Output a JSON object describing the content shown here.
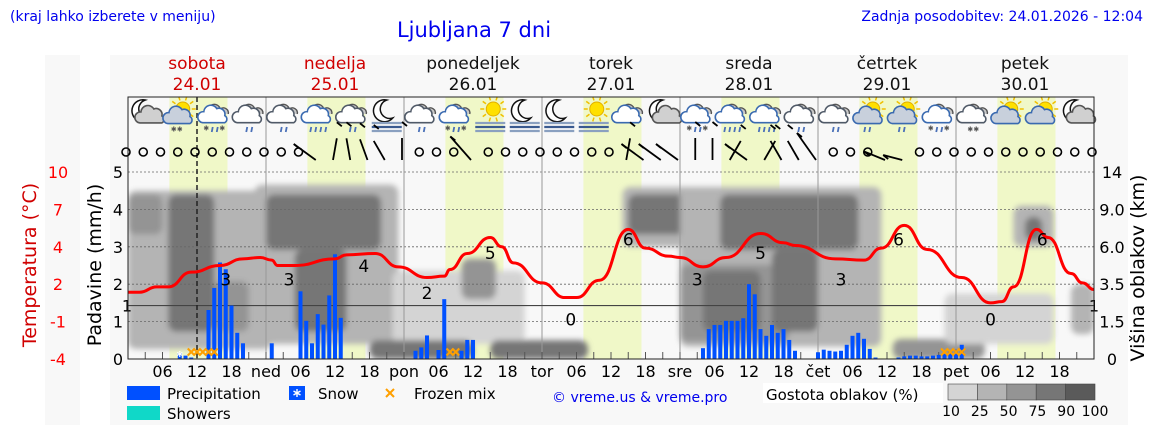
{
  "header": {
    "location_hint": "(kraj lahko izberete v meniju)",
    "title": "Ljubljana 7 dni",
    "last_update": "Zadnja posodobitev: 24.01.2026 - 12:04"
  },
  "days": [
    {
      "name": "sobota",
      "date": "24.01",
      "weekend": true
    },
    {
      "name": "nedelja",
      "date": "25.01",
      "weekend": true
    },
    {
      "name": "ponedeljek",
      "date": "26.01",
      "weekend": false
    },
    {
      "name": "torek",
      "date": "27.01",
      "weekend": false
    },
    {
      "name": "sreda",
      "date": "28.01",
      "weekend": false
    },
    {
      "name": "četrtek",
      "date": "29.01",
      "weekend": false
    },
    {
      "name": "petek",
      "date": "30.01",
      "weekend": false
    }
  ],
  "weather_icons": [
    "moon-cloud",
    "sun-cloud-snow",
    "cloud-sleet",
    "cloud-rain",
    "cloud-rain",
    "cloud-heavy-rain",
    "cloud-rain",
    "moon-fog",
    "cloud-rain",
    "cloud-sleet",
    "sun-fog",
    "moon-fog",
    "moon-fog",
    "sun-fog",
    "cloud",
    "moon-cloud",
    "cloud-sleet",
    "cloud-heavy-rain",
    "cloud-heavy-rain",
    "cloud-rain",
    "cloud-rain",
    "sun-cloud-rain",
    "sun-cloud-rain",
    "cloud-sleet",
    "cloud-snow",
    "sun-cloud",
    "sun-cloud",
    "moon-cloud"
  ],
  "wind": [
    "calm",
    "calm",
    "calm",
    "calm",
    "calm",
    "calm",
    "calm",
    "calm",
    "calm",
    "calm",
    "calm",
    270,
    10,
    350,
    340,
    330,
    0,
    "calm",
    "calm",
    "calm",
    290,
    "calm",
    "calm",
    "calm",
    "calm",
    "calm",
    "calm",
    "calm",
    "calm",
    10,
    270,
    270,
    270,
    0,
    0,
    30,
    270,
    30,
    330,
    330,
    300,
    "calm",
    "calm",
    "calm",
    250,
    240,
    "calm",
    "calm",
    "calm",
    "calm",
    "calm",
    "calm",
    "calm",
    "calm",
    "calm",
    "calm",
    "calm"
  ],
  "chart_data": {
    "type": "line",
    "current_time": "24.01 12:00",
    "x_tick_labels": [
      "06",
      "12",
      "18",
      "ned",
      "06",
      "12",
      "18",
      "pon",
      "06",
      "12",
      "18",
      "tor",
      "06",
      "12",
      "18",
      "sre",
      "06",
      "12",
      "18",
      "čet",
      "06",
      "12",
      "18",
      "pet",
      "06",
      "12",
      "18"
    ],
    "axes": {
      "precipitation": {
        "label": "Padavine (mm/h)",
        "ticks": [
          "0",
          "1",
          "2",
          "3",
          "4",
          "5"
        ],
        "ylim": [
          0,
          5
        ]
      },
      "temperature": {
        "label": "Temperatura (°C)",
        "ticks": [
          "10",
          "7",
          "4",
          "2",
          "-1",
          "-4"
        ],
        "ylim": [
          -4,
          10
        ]
      },
      "cloud_height": {
        "label": "Višina oblakov (km)",
        "ticks": [
          "14",
          "9.0",
          "6.0",
          "3.5",
          "1.5",
          "0"
        ]
      }
    },
    "zero_line_label": "1",
    "temperature": [
      [
        "24.01 00:00",
        1.0
      ],
      [
        "24.01 02:00",
        1.0
      ],
      [
        "24.01 05:00",
        1.4
      ],
      [
        "24.01 07:00",
        1.4
      ],
      [
        "24.01 11:00",
        2.5
      ],
      [
        "24.01 16:00",
        3.0
      ],
      [
        "24.01 20:00",
        3.5
      ],
      [
        "24.01 23:00",
        3.6
      ],
      [
        "25.01 01:00",
        3.4
      ],
      [
        "25.01 02:00",
        3.0
      ],
      [
        "25.01 05:00",
        3.0
      ],
      [
        "25.01 12:00",
        3.5
      ],
      [
        "25.01 14:00",
        3.8
      ],
      [
        "25.01 19:00",
        3.9
      ],
      [
        "25.01 23:00",
        2.9
      ],
      [
        "26.01 04:00",
        2.1
      ],
      [
        "26.01 07:00",
        2.2
      ],
      [
        "26.01 08:00",
        2.7
      ],
      [
        "26.01 11:00",
        3.9
      ],
      [
        "26.01 15:00",
        5.1
      ],
      [
        "26.01 17:00",
        4.4
      ],
      [
        "26.01 19:00",
        3.2
      ],
      [
        "27.01 00:00",
        1.7
      ],
      [
        "27.01 04:00",
        0.6
      ],
      [
        "27.01 06:00",
        0.6
      ],
      [
        "27.01 10:00",
        1.9
      ],
      [
        "27.01 15:00",
        5.7
      ],
      [
        "27.01 18:00",
        4.3
      ],
      [
        "27.01 22:00",
        3.7
      ],
      [
        "28.01 00:00",
        3.6
      ],
      [
        "28.01 04:00",
        2.9
      ],
      [
        "28.01 08:00",
        3.6
      ],
      [
        "28.01 14:00",
        5.4
      ],
      [
        "28.01 18:00",
        4.7
      ],
      [
        "28.01 20:00",
        4.5
      ],
      [
        "29.01 03:00",
        3.5
      ],
      [
        "29.01 08:00",
        3.4
      ],
      [
        "29.01 11:00",
        4.3
      ],
      [
        "29.01 15:00",
        6.0
      ],
      [
        "29.01 19:00",
        4.2
      ],
      [
        "30.01 01:00",
        2.1
      ],
      [
        "30.01 06:00",
        0.2
      ],
      [
        "30.01 08:00",
        0.3
      ],
      [
        "30.01 10:00",
        1.4
      ],
      [
        "30.01 14:00",
        5.7
      ],
      [
        "30.01 16:00",
        5.1
      ],
      [
        "30.01 20:00",
        2.4
      ],
      [
        "30.01 22:00",
        1.7
      ],
      [
        "31.01 00:00",
        1.2
      ]
    ],
    "temperature_labels": [
      [
        "24.01 17:00",
        "3"
      ],
      [
        "25.01 04:00",
        "3"
      ],
      [
        "25.01 17:00",
        "4"
      ],
      [
        "26.01 04:00",
        "2"
      ],
      [
        "26.01 15:00",
        "5"
      ],
      [
        "27.01 05:00",
        "0"
      ],
      [
        "27.01 15:00",
        "6"
      ],
      [
        "28.01 03:00",
        "3"
      ],
      [
        "28.01 14:00",
        "5"
      ],
      [
        "29.01 04:00",
        "3"
      ],
      [
        "29.01 14:00",
        "6"
      ],
      [
        "30.01 06:00",
        "0"
      ],
      [
        "30.01 15:00",
        "6"
      ]
    ],
    "precipitation": [
      [
        "24.01 09:00",
        0.16
      ],
      [
        "24.01 10:00",
        0.09
      ],
      [
        "24.01 11:00",
        0.04
      ],
      [
        "24.01 14:00",
        1.31
      ],
      [
        "24.01 15:00",
        1.9
      ],
      [
        "24.01 16:00",
        2.58
      ],
      [
        "24.01 17:00",
        2.4
      ],
      [
        "24.01 18:00",
        1.43
      ],
      [
        "24.01 19:00",
        0.7
      ],
      [
        "24.01 20:00",
        0.42
      ],
      [
        "25.01 01:00",
        0.42
      ],
      [
        "25.01 06:00",
        1.81
      ],
      [
        "25.01 07:00",
        1.02
      ],
      [
        "25.01 08:00",
        0.42
      ],
      [
        "25.01 09:00",
        1.2
      ],
      [
        "25.01 10:00",
        0.92
      ],
      [
        "25.01 11:00",
        1.7
      ],
      [
        "25.01 12:00",
        2.8
      ],
      [
        "25.01 13:00",
        1.1
      ],
      [
        "26.01 02:00",
        0.22
      ],
      [
        "26.01 03:00",
        0.31
      ],
      [
        "26.01 04:00",
        0.63
      ],
      [
        "26.01 06:00",
        0.24
      ],
      [
        "26.01 07:00",
        1.6
      ],
      [
        "26.01 10:00",
        0.22
      ],
      [
        "26.01 11:00",
        0.51
      ],
      [
        "26.01 12:00",
        0.51
      ],
      [
        "28.01 04:00",
        0.29
      ],
      [
        "28.01 05:00",
        0.8
      ],
      [
        "28.01 06:00",
        0.91
      ],
      [
        "28.01 07:00",
        0.91
      ],
      [
        "28.01 08:00",
        1.02
      ],
      [
        "28.01 09:00",
        1.02
      ],
      [
        "28.01 10:00",
        1.02
      ],
      [
        "28.01 11:00",
        1.09
      ],
      [
        "28.01 12:00",
        2.0
      ],
      [
        "28.01 13:00",
        1.73
      ],
      [
        "28.01 14:00",
        0.8
      ],
      [
        "28.01 15:00",
        0.62
      ],
      [
        "28.01 16:00",
        0.91
      ],
      [
        "28.01 17:00",
        0.7
      ],
      [
        "28.01 18:00",
        0.8
      ],
      [
        "28.01 19:00",
        0.51
      ],
      [
        "28.01 20:00",
        0.22
      ],
      [
        "29.01 00:00",
        0.18
      ],
      [
        "29.01 01:00",
        0.25
      ],
      [
        "29.01 02:00",
        0.22
      ],
      [
        "29.01 03:00",
        0.2
      ],
      [
        "29.01 04:00",
        0.22
      ],
      [
        "29.01 05:00",
        0.38
      ],
      [
        "29.01 06:00",
        0.62
      ],
      [
        "29.01 07:00",
        0.7
      ],
      [
        "29.01 08:00",
        0.54
      ],
      [
        "29.01 09:00",
        0.27
      ],
      [
        "29.01 10:00",
        0.04
      ],
      [
        "29.01 14:00",
        0.04
      ],
      [
        "29.01 15:00",
        0.07
      ],
      [
        "29.01 16:00",
        0.09
      ],
      [
        "29.01 17:00",
        0.09
      ],
      [
        "29.01 18:00",
        0.07
      ],
      [
        "29.01 19:00",
        0.07
      ],
      [
        "29.01 20:00",
        0.09
      ],
      [
        "29.01 21:00",
        0.11
      ],
      [
        "29.01 22:00",
        0.14
      ],
      [
        "29.01 23:00",
        0.2
      ],
      [
        "30.01 00:00",
        0.25
      ],
      [
        "30.01 01:00",
        0.38
      ]
    ],
    "snow": [
      "24.01 09:00"
    ],
    "frozen_mix": [
      "24.01 11:00",
      "24.01 12:00",
      "24.01 13:00",
      "24.01 14:00",
      "24.01 15:00",
      "26.01 08:00",
      "26.01 09:00",
      "29.01 22:00",
      "29.01 23:00",
      "30.01 00:00",
      "30.01 01:00"
    ],
    "cloud_density": [
      [
        "24.01 00:00",
        "25.01 01:00",
        0.4,
        11.5,
        25
      ],
      [
        "24.01 00:00",
        "24.01 06:00",
        7,
        11,
        60
      ],
      [
        "24.01 15:00",
        "24.01 21:00",
        1.1,
        3.7,
        50
      ],
      [
        "24.01 07:00",
        "24.01 15:00",
        1.1,
        11,
        85
      ],
      [
        "24.01 22:00",
        "25.01 23:00",
        0.6,
        12.3,
        25
      ],
      [
        "25.01 00:00",
        "25.01 20:00",
        5.8,
        11,
        85
      ],
      [
        "25.01 05:00",
        "25.01 14:00",
        1.1,
        5.8,
        80
      ],
      [
        "25.01 22:00",
        "26.01 21:00",
        0.6,
        4.4,
        20
      ],
      [
        "26.01 10:00",
        "26.01 16:00",
        2.7,
        5.2,
        50
      ],
      [
        "25.01 18:00",
        "26.01 12:00",
        0,
        0.75,
        75
      ],
      [
        "26.01 15:00",
        "27.01 08:00",
        0,
        0.75,
        75
      ],
      [
        "27.01 14:00",
        "28.01 04:00",
        6.0,
        12,
        25
      ],
      [
        "27.01 15:00",
        "28.01 03:00",
        7,
        11,
        80
      ],
      [
        "28.01 00:00",
        "29.01 11:00",
        0.5,
        12,
        25
      ],
      [
        "28.01 00:00",
        "28.01 19:00",
        0.7,
        4.8,
        50
      ],
      [
        "28.01 04:00",
        "28.01 14:00",
        1.1,
        4.4,
        75
      ],
      [
        "28.01 07:00",
        "29.01 07:00",
        5.8,
        11,
        85
      ],
      [
        "28.01 16:00",
        "29.01 00:00",
        1.1,
        5.8,
        85
      ],
      [
        "29.01 13:00",
        "30.01 05:00",
        0,
        0.8,
        50
      ],
      [
        "29.01 22:00",
        "30.01 17:00",
        0.6,
        3.0,
        20
      ],
      [
        "30.01 10:00",
        "30.01 17:00",
        6.0,
        9.5,
        25
      ],
      [
        "30.01 12:00",
        "30.01 15:00",
        6.5,
        8.4,
        85
      ],
      [
        "30.01 20:00",
        "31.01 00:00",
        1.0,
        3.5,
        25
      ]
    ]
  },
  "legend": {
    "precipitation": "Precipitation",
    "snow": "Snow",
    "frozen_mix": "Frozen mix",
    "showers": "Showers",
    "copyright": "© vreme.us & vreme.pro",
    "cloud_density_title": "Gostota oblakov (%)",
    "cloud_density_levels": [
      "10",
      "25",
      "50",
      "75",
      "90",
      "100"
    ]
  },
  "colors": {
    "precipitation": "#0050ff",
    "showers": "#10d8c8",
    "frozen_mix": "#ffa000",
    "temperature": "#ff0000",
    "weekend": "#d00000",
    "link": "#0000ee",
    "daylight": "#f0f8c8",
    "cloud_levels": [
      "#d4d4d4",
      "#b4b4b4",
      "#949494",
      "#767676",
      "#5a5a5a"
    ]
  }
}
